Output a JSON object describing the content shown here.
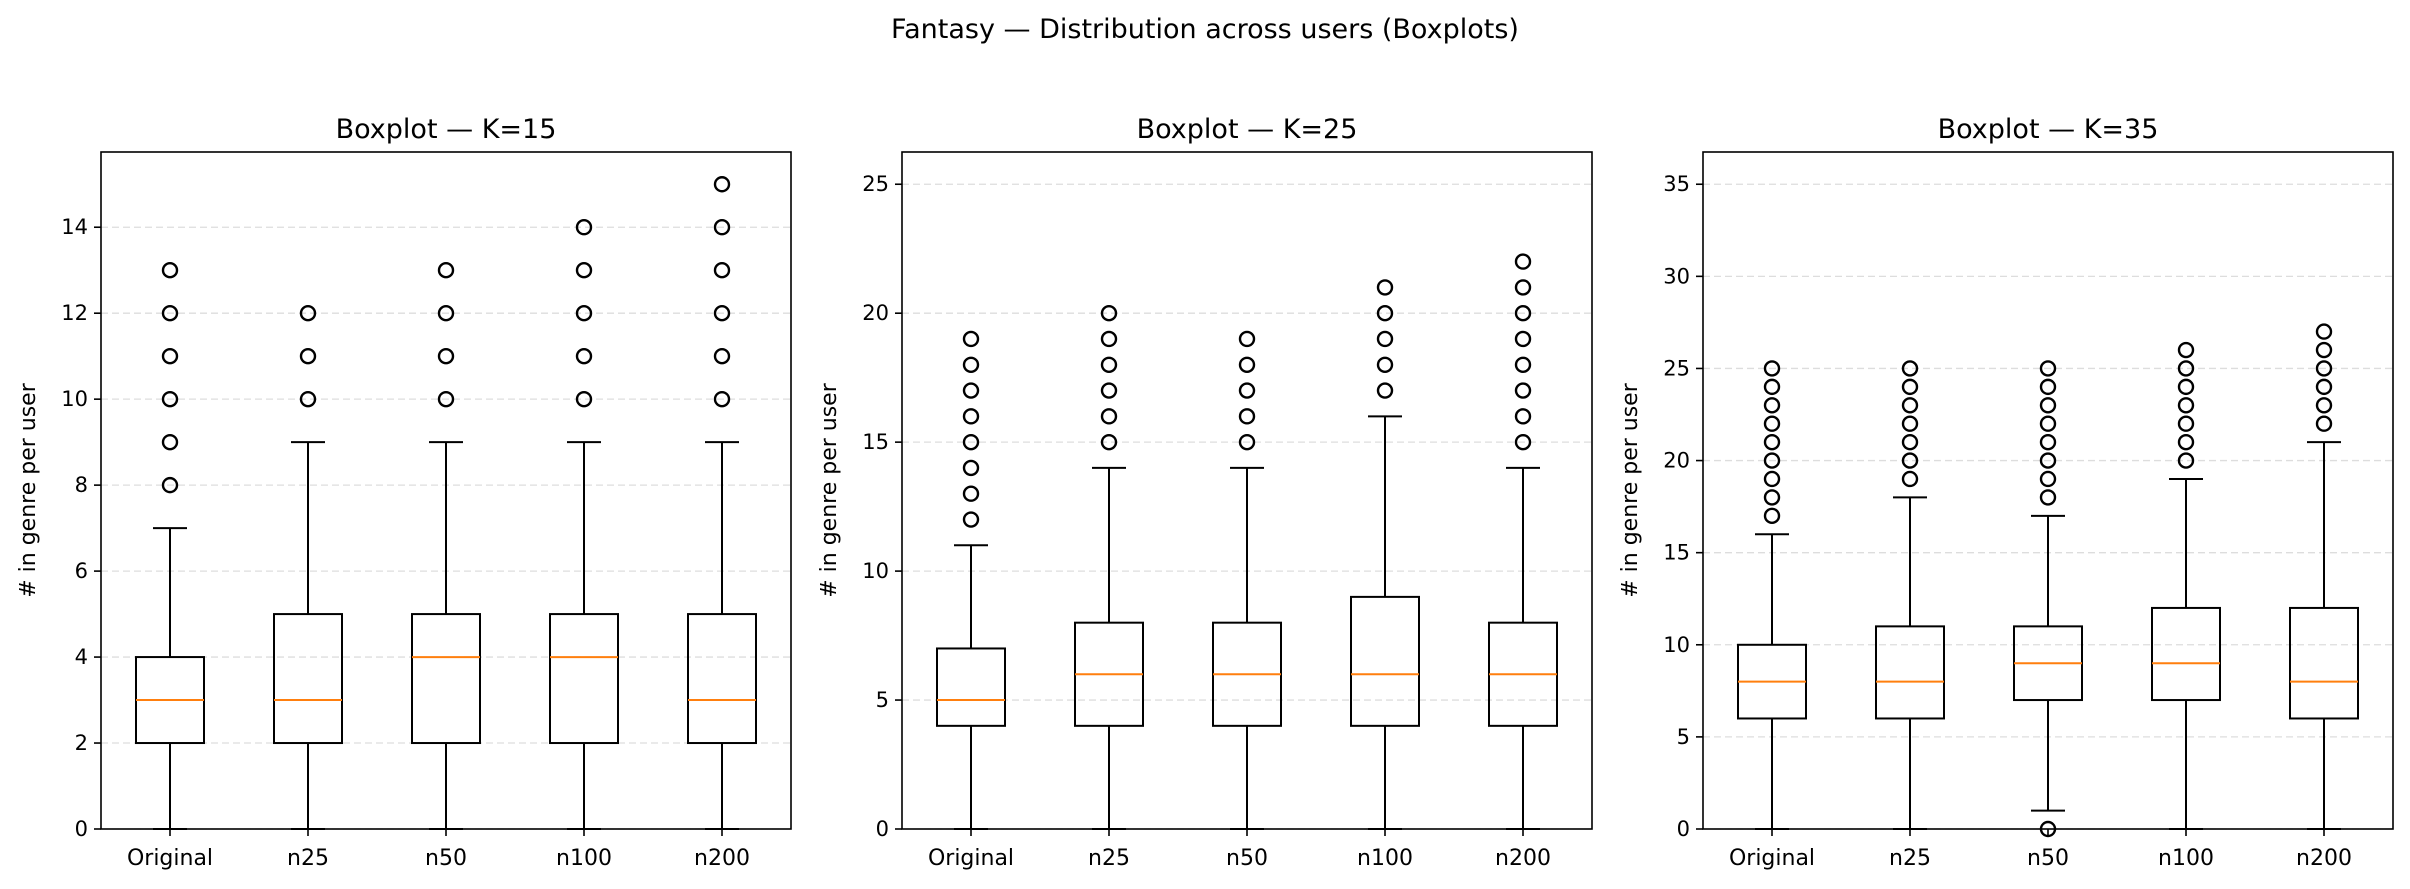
{
  "figure_title": "Fantasy — Distribution across users (Boxplots)",
  "colors": {
    "box": "#000000",
    "median": "#ff7f0e",
    "grid": "#dddddd",
    "flier": "#000000"
  },
  "chart_data": [
    {
      "type": "boxplot",
      "title": "Boxplot — K=15",
      "ylabel": "# in genre per user",
      "xlabel": "",
      "ylim": [
        0,
        15.75
      ],
      "yticks": [
        0,
        2,
        4,
        6,
        8,
        10,
        12,
        14
      ],
      "grid": "y-dashed",
      "categories": [
        "Original",
        "n25",
        "n50",
        "n100",
        "n200"
      ],
      "boxes": [
        {
          "category": "Original",
          "whisker_low": 0,
          "q1": 2,
          "median": 3,
          "q3": 4,
          "whisker_high": 7,
          "fliers": [
            8,
            9,
            10,
            11,
            12,
            13
          ]
        },
        {
          "category": "n25",
          "whisker_low": 0,
          "q1": 2,
          "median": 3,
          "q3": 5,
          "whisker_high": 9,
          "fliers": [
            10,
            11,
            12
          ]
        },
        {
          "category": "n50",
          "whisker_low": 0,
          "q1": 2,
          "median": 4,
          "q3": 5,
          "whisker_high": 9,
          "fliers": [
            10,
            11,
            12,
            13
          ]
        },
        {
          "category": "n100",
          "whisker_low": 0,
          "q1": 2,
          "median": 4,
          "q3": 5,
          "whisker_high": 9,
          "fliers": [
            10,
            11,
            12,
            13,
            14
          ]
        },
        {
          "category": "n200",
          "whisker_low": 0,
          "q1": 2,
          "median": 3,
          "q3": 5,
          "whisker_high": 9,
          "fliers": [
            10,
            11,
            12,
            13,
            14,
            15
          ]
        }
      ]
    },
    {
      "type": "boxplot",
      "title": "Boxplot — K=25",
      "ylabel": "# in genre per user",
      "xlabel": "",
      "ylim": [
        0,
        26.25
      ],
      "yticks": [
        0,
        5,
        10,
        15,
        20,
        25
      ],
      "grid": "y-dashed",
      "categories": [
        "Original",
        "n25",
        "n50",
        "n100",
        "n200"
      ],
      "boxes": [
        {
          "category": "Original",
          "whisker_low": 0,
          "q1": 4,
          "median": 5,
          "q3": 7,
          "whisker_high": 11,
          "fliers": [
            12,
            13,
            14,
            15,
            16,
            17,
            18,
            19
          ]
        },
        {
          "category": "n25",
          "whisker_low": 0,
          "q1": 4,
          "median": 6,
          "q3": 8,
          "whisker_high": 14,
          "fliers": [
            15,
            16,
            17,
            18,
            19,
            20
          ]
        },
        {
          "category": "n50",
          "whisker_low": 0,
          "q1": 4,
          "median": 6,
          "q3": 8,
          "whisker_high": 14,
          "fliers": [
            15,
            16,
            17,
            18,
            19
          ]
        },
        {
          "category": "n100",
          "whisker_low": 0,
          "q1": 4,
          "median": 6,
          "q3": 9,
          "whisker_high": 16,
          "fliers": [
            17,
            18,
            19,
            20,
            21
          ]
        },
        {
          "category": "n200",
          "whisker_low": 0,
          "q1": 4,
          "median": 6,
          "q3": 8,
          "whisker_high": 14,
          "fliers": [
            15,
            16,
            17,
            18,
            19,
            20,
            21,
            22
          ]
        }
      ]
    },
    {
      "type": "boxplot",
      "title": "Boxplot — K=35",
      "ylabel": "# in genre per user",
      "xlabel": "",
      "ylim": [
        0,
        36.75
      ],
      "yticks": [
        0,
        5,
        10,
        15,
        20,
        25,
        30,
        35
      ],
      "grid": "y-dashed",
      "categories": [
        "Original",
        "n25",
        "n50",
        "n100",
        "n200"
      ],
      "boxes": [
        {
          "category": "Original",
          "whisker_low": 0,
          "q1": 6,
          "median": 8,
          "q3": 10,
          "whisker_high": 16,
          "fliers": [
            17,
            18,
            19,
            20,
            21,
            22,
            23,
            24,
            25
          ]
        },
        {
          "category": "n25",
          "whisker_low": 0,
          "q1": 6,
          "median": 8,
          "q3": 11,
          "whisker_high": 18,
          "fliers": [
            19,
            20,
            21,
            22,
            23,
            24,
            25
          ]
        },
        {
          "category": "n50",
          "whisker_low": 1,
          "q1": 7,
          "median": 9,
          "q3": 11,
          "whisker_high": 17,
          "fliers": [
            0,
            18,
            19,
            20,
            21,
            22,
            23,
            24,
            25
          ]
        },
        {
          "category": "n100",
          "whisker_low": 0,
          "q1": 7,
          "median": 9,
          "q3": 12,
          "whisker_high": 19,
          "fliers": [
            20,
            21,
            22,
            23,
            24,
            25,
            26
          ]
        },
        {
          "category": "n200",
          "whisker_low": 0,
          "q1": 6,
          "median": 8,
          "q3": 12,
          "whisker_high": 21,
          "fliers": [
            22,
            23,
            24,
            25,
            26,
            27
          ]
        }
      ]
    }
  ]
}
